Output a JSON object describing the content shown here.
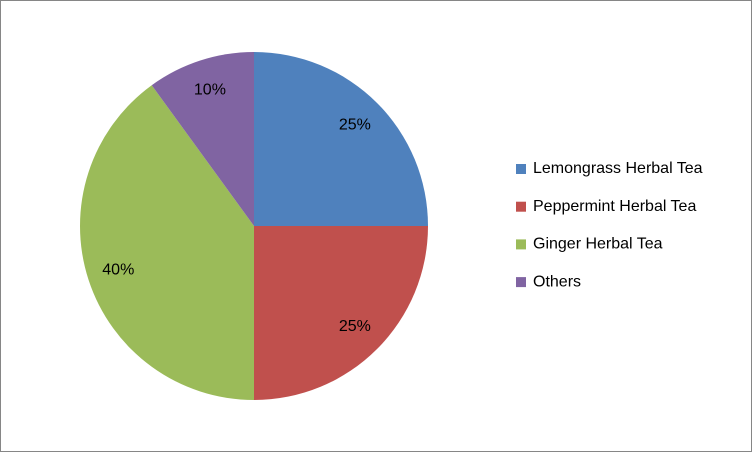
{
  "chart_data": {
    "type": "pie",
    "categories": [
      "Lemongrass Herbal Tea",
      "Peppermint Herbal Tea",
      "Ginger Herbal Tea",
      "Others"
    ],
    "values": [
      25,
      25,
      40,
      10
    ],
    "value_labels": [
      "25%",
      "25%",
      "40%",
      "10%"
    ],
    "colors": [
      "#4f81bd",
      "#c0504d",
      "#9bbb59",
      "#8064a2"
    ],
    "legend": "right"
  }
}
